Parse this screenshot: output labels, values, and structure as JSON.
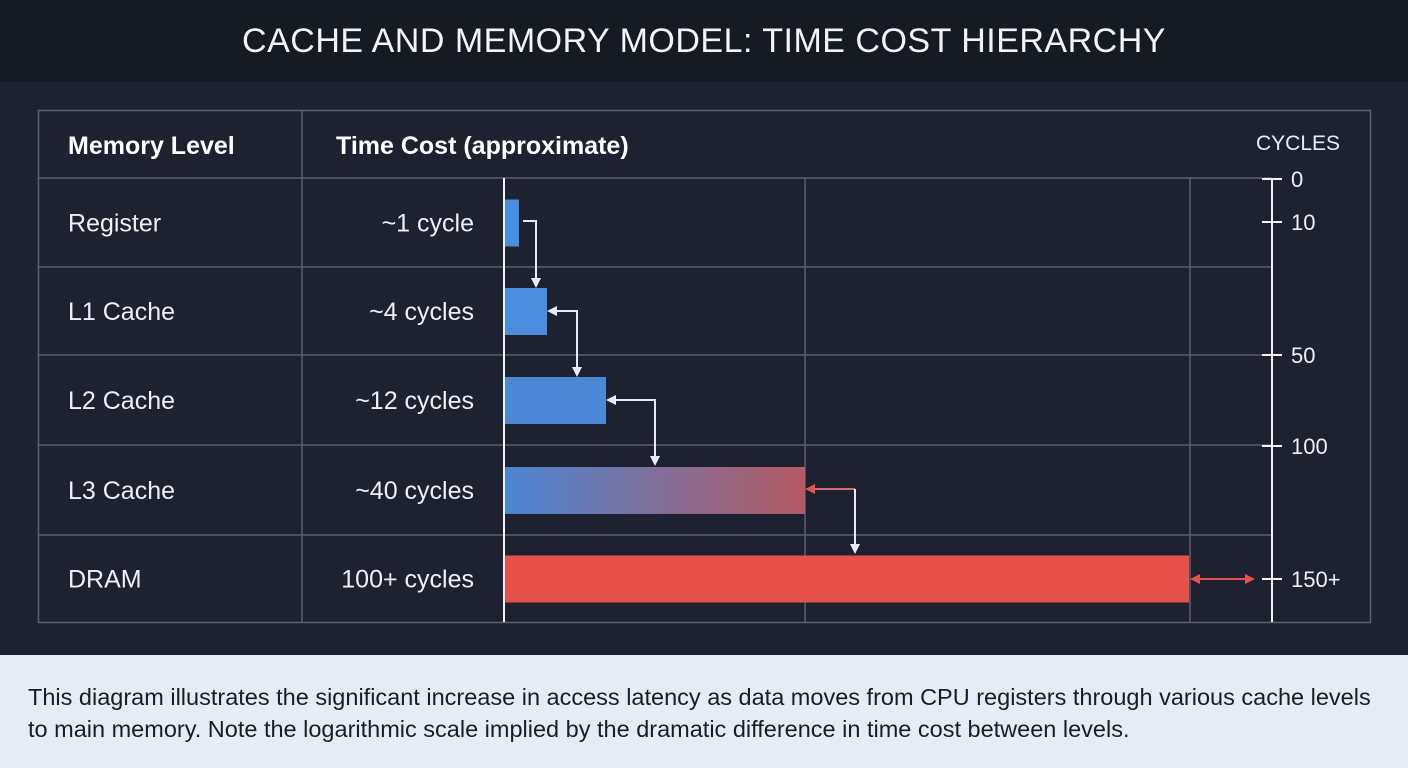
{
  "title": "CACHE AND MEMORY MODEL: TIME COST HIERARCHY",
  "caption": "This diagram illustrates the significant increase in access latency as data moves from CPU registers through various cache levels to main memory. Note the logarithmic scale implied by the dramatic difference in time cost between levels.",
  "chart_data": {
    "type": "bar",
    "orientation": "horizontal",
    "headers": {
      "level": "Memory Level",
      "cost": "Time Cost (approximate)"
    },
    "axis_label": "CYCLES",
    "axis_ticks": [
      "0",
      "10",
      "50",
      "100",
      "150+"
    ],
    "categories": [
      "Register",
      "L1 Cache",
      "L2 Cache",
      "L3 Cache",
      "DRAM"
    ],
    "cost_labels": [
      "~1 cycle",
      "~4 cycles",
      "~12 cycles",
      "~40 cycles",
      "100+ cycles"
    ],
    "values": [
      1,
      4,
      12,
      40,
      100
    ],
    "colors": {
      "fast": "#4a8ee0",
      "slow": "#e8504a",
      "connector": "#e6ecf5"
    }
  }
}
